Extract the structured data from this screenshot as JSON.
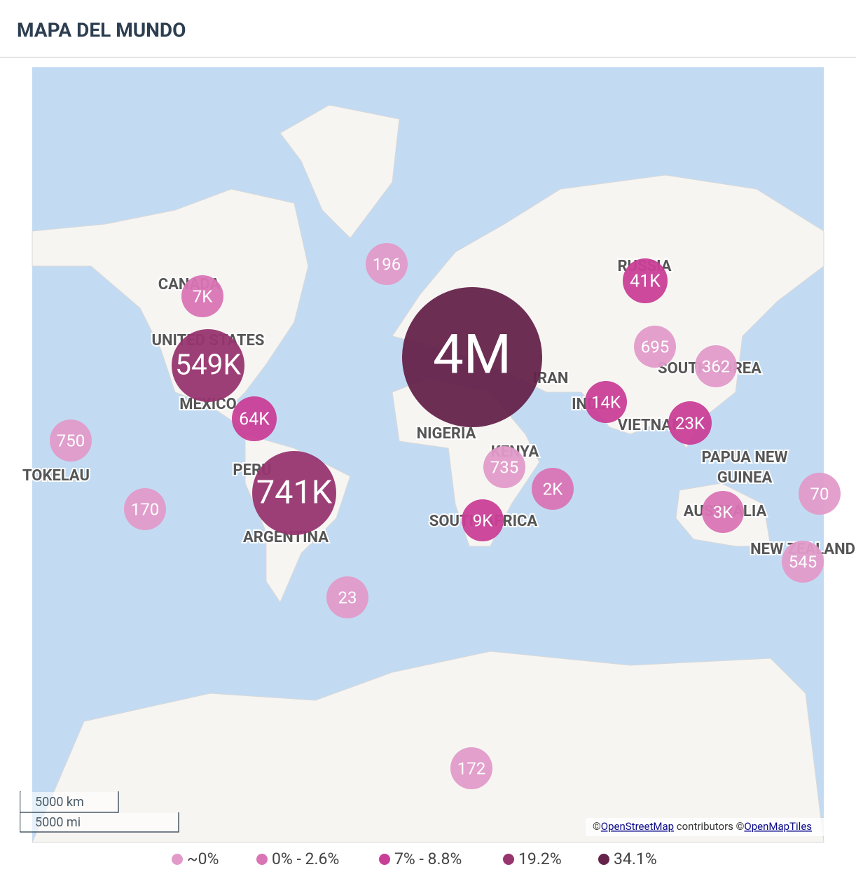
{
  "header": {
    "title": "MAPA DEL MUNDO"
  },
  "map": {
    "country_labels": [
      "CANADA",
      "UNITED STATES",
      "MEXICO",
      "PERU",
      "ARGENTINA",
      "TOKELAU",
      "NIGERIA",
      "KENYA",
      "SOUTH AFRICA",
      "RUSSIA",
      "IRAN",
      "INDIA",
      "SOUTH KOREA",
      "VIETNAM",
      "PAPUA NEW",
      "GUINEA",
      "AUSTRALIA",
      "NEW ZEALAND"
    ],
    "bubbles": [
      {
        "label": "196",
        "color": "#e29bc9"
      },
      {
        "label": "7K",
        "color": "#d975b5"
      },
      {
        "label": "549K",
        "color": "#983570"
      },
      {
        "label": "64K",
        "color": "#c93f97"
      },
      {
        "label": "750",
        "color": "#e29bc9"
      },
      {
        "label": "741K",
        "color": "#983570"
      },
      {
        "label": "170",
        "color": "#e29bc9"
      },
      {
        "label": "4M",
        "color": "#65234a"
      },
      {
        "label": "41K",
        "color": "#c93f97"
      },
      {
        "label": "695",
        "color": "#e29bc9"
      },
      {
        "label": "362",
        "color": "#e29bc9"
      },
      {
        "label": "14K",
        "color": "#c93f97"
      },
      {
        "label": "23K",
        "color": "#c93f97"
      },
      {
        "label": "735",
        "color": "#e29bc9"
      },
      {
        "label": "2K",
        "color": "#d975b5"
      },
      {
        "label": "9K",
        "color": "#c93f97"
      },
      {
        "label": "3K",
        "color": "#d975b5"
      },
      {
        "label": "70",
        "color": "#e29bc9"
      },
      {
        "label": "545",
        "color": "#e29bc9"
      },
      {
        "label": "23",
        "color": "#e29bc9"
      },
      {
        "label": "172",
        "color": "#e29bc9"
      }
    ],
    "scale": [
      "5000 km",
      "5000 mi"
    ],
    "attribution": [
      {
        "text": "©"
      },
      {
        "text": "OpenStreetMap",
        "link": true
      },
      {
        "text": " contributors  ©"
      },
      {
        "text": "OpenMapTiles",
        "link": true
      }
    ]
  },
  "legend": [
    {
      "label": "~0%",
      "color": "#e29bc9"
    },
    {
      "label": "0% - 2.6%",
      "color": "#d975b5"
    },
    {
      "label": "7% - 8.8%",
      "color": "#c93f97"
    },
    {
      "label": "19.2%",
      "color": "#983570"
    },
    {
      "label": "34.1%",
      "color": "#65234a"
    }
  ]
}
